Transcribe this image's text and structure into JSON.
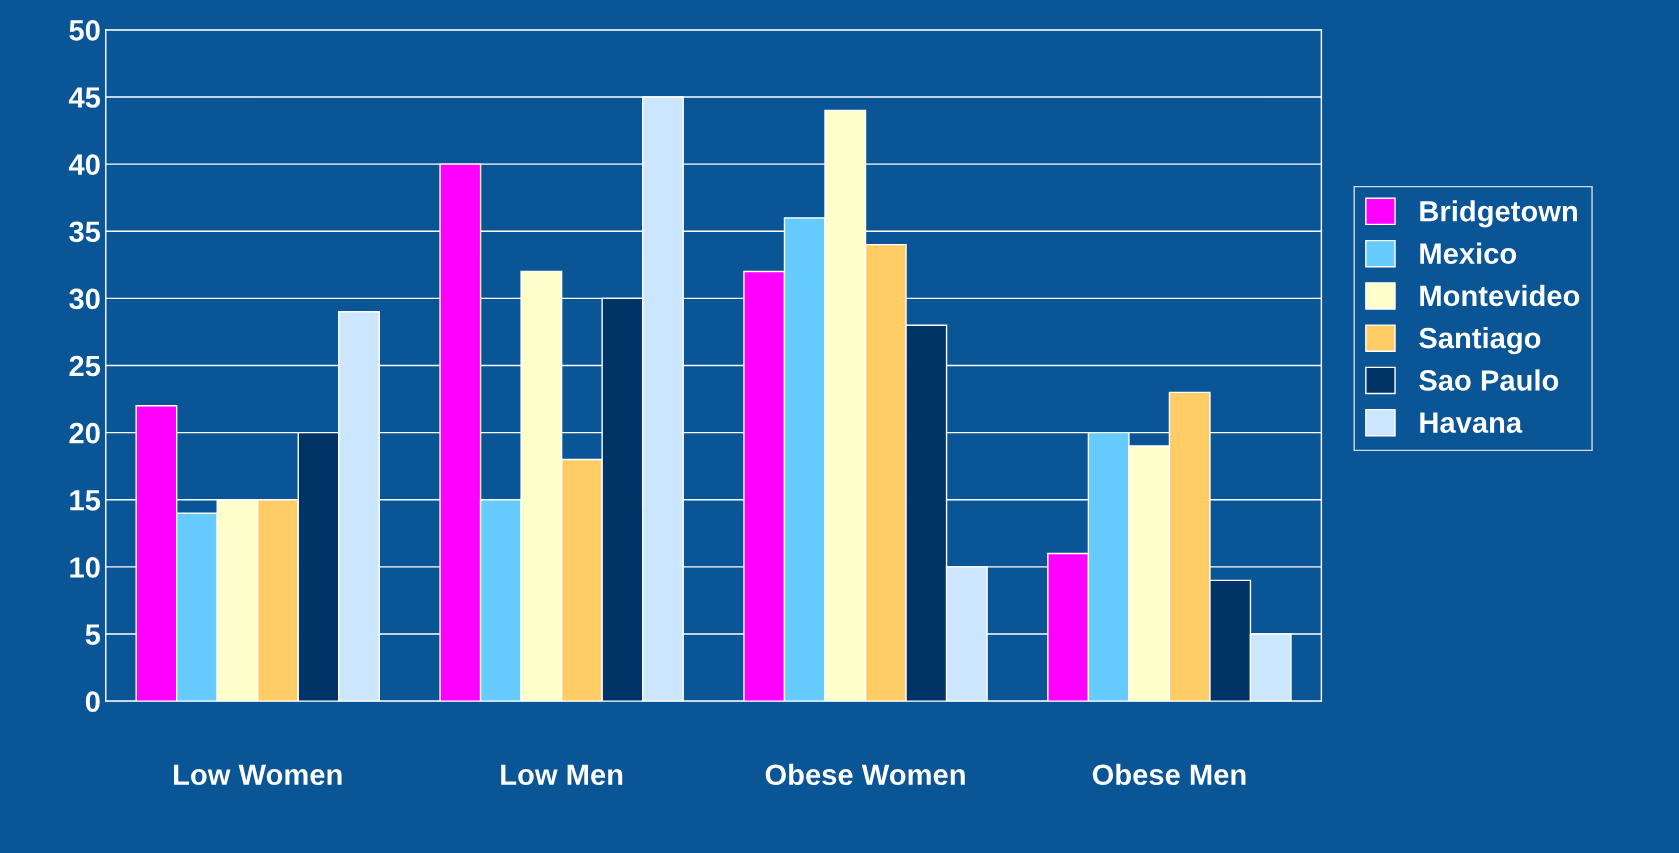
{
  "chart_data": {
    "type": "bar",
    "categories": [
      "Low Women",
      "Low Men",
      "Obese Women",
      "Obese Men"
    ],
    "series": [
      {
        "name": "Bridgetown",
        "color": "#ff00ff",
        "values": [
          22,
          40,
          32,
          11
        ]
      },
      {
        "name": "Mexico",
        "color": "#66ccff",
        "values": [
          14,
          15,
          36,
          20
        ]
      },
      {
        "name": "Montevideo",
        "color": "#ffffcc",
        "values": [
          15,
          32,
          44,
          19
        ]
      },
      {
        "name": "Santiago",
        "color": "#ffcc66",
        "values": [
          15,
          18,
          34,
          23
        ]
      },
      {
        "name": "Sao Paulo",
        "color": "#003366",
        "values": [
          20,
          30,
          28,
          9
        ]
      },
      {
        "name": "Havana",
        "color": "#cce6ff",
        "values": [
          29,
          45,
          10,
          5
        ]
      }
    ],
    "ylim": [
      0,
      50
    ],
    "yticks": [
      0,
      5,
      10,
      15,
      20,
      25,
      30,
      35,
      40,
      45,
      50
    ],
    "grid": "y",
    "legend": "right"
  }
}
